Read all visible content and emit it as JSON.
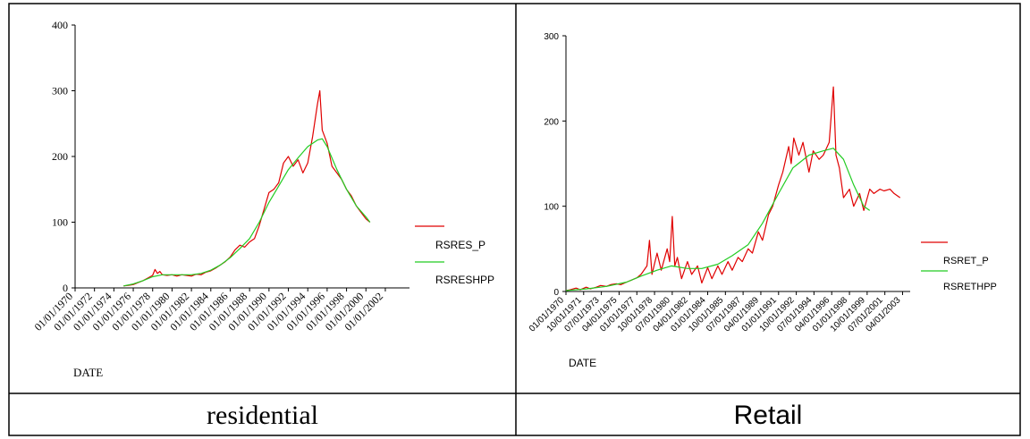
{
  "captions": {
    "left": "residential",
    "right": "Retail"
  },
  "chart_data": [
    {
      "type": "line",
      "xlabel": "DATE",
      "ylabel": "",
      "ylim": [
        0,
        400
      ],
      "y_ticks": [
        0,
        100,
        200,
        300,
        400
      ],
      "x_range": [
        "1970-01-01",
        "2004-06-30"
      ],
      "x_tick_labels": [
        "01/01/1970",
        "01/01/1972",
        "01/01/1974",
        "01/01/1976",
        "01/01/1978",
        "01/01/1980",
        "01/01/1982",
        "01/01/1984",
        "01/01/1986",
        "01/01/1988",
        "01/01/1990",
        "01/01/1992",
        "01/01/1994",
        "01/01/1996",
        "01/01/1998",
        "01/01/2000",
        "01/01/2002"
      ],
      "x_tick_dates": [
        "1970-01-01",
        "1972-01-01",
        "1974-01-01",
        "1976-01-01",
        "1978-01-01",
        "1980-01-01",
        "1982-01-01",
        "1984-01-01",
        "1986-01-01",
        "1988-01-01",
        "1990-01-01",
        "1992-01-01",
        "1994-01-01",
        "1996-01-01",
        "1998-01-01",
        "2000-01-01",
        "2002-01-01"
      ],
      "legend": [
        "RSRES_P",
        "RSRESHPP"
      ],
      "legend_position": "right",
      "grid": false,
      "series": [
        {
          "name": "RSRES_P",
          "color": "#e00000",
          "points": [
            [
              "1975-01-01",
              3
            ],
            [
              "1975-07-01",
              4
            ],
            [
              "1976-01-01",
              5
            ],
            [
              "1976-07-01",
              8
            ],
            [
              "1977-01-01",
              11
            ],
            [
              "1977-07-01",
              15
            ],
            [
              "1978-01-01",
              19
            ],
            [
              "1978-04-01",
              28
            ],
            [
              "1978-07-01",
              22
            ],
            [
              "1978-10-01",
              25
            ],
            [
              "1979-01-01",
              20
            ],
            [
              "1979-07-01",
              19
            ],
            [
              "1980-01-01",
              20
            ],
            [
              "1980-07-01",
              18
            ],
            [
              "1981-01-01",
              20
            ],
            [
              "1981-07-01",
              19
            ],
            [
              "1982-01-01",
              18
            ],
            [
              "1982-07-01",
              21
            ],
            [
              "1983-01-01",
              20
            ],
            [
              "1983-07-01",
              24
            ],
            [
              "1984-01-01",
              26
            ],
            [
              "1984-07-01",
              30
            ],
            [
              "1985-01-01",
              35
            ],
            [
              "1985-07-01",
              40
            ],
            [
              "1986-01-01",
              47
            ],
            [
              "1986-07-01",
              58
            ],
            [
              "1987-01-01",
              65
            ],
            [
              "1987-07-01",
              62
            ],
            [
              "1988-01-01",
              70
            ],
            [
              "1988-07-01",
              75
            ],
            [
              "1989-01-01",
              95
            ],
            [
              "1989-07-01",
              120
            ],
            [
              "1990-01-01",
              145
            ],
            [
              "1990-07-01",
              150
            ],
            [
              "1991-01-01",
              160
            ],
            [
              "1991-07-01",
              190
            ],
            [
              "1992-01-01",
              200
            ],
            [
              "1992-07-01",
              185
            ],
            [
              "1993-01-01",
              195
            ],
            [
              "1993-07-01",
              175
            ],
            [
              "1994-01-01",
              190
            ],
            [
              "1994-07-01",
              230
            ],
            [
              "1995-01-01",
              280
            ],
            [
              "1995-04-01",
              300
            ],
            [
              "1995-07-01",
              240
            ],
            [
              "1996-01-01",
              220
            ],
            [
              "1996-07-01",
              185
            ],
            [
              "1997-01-01",
              175
            ],
            [
              "1997-07-01",
              165
            ],
            [
              "1998-01-01",
              150
            ],
            [
              "1998-07-01",
              140
            ],
            [
              "1999-01-01",
              125
            ],
            [
              "1999-07-01",
              115
            ],
            [
              "2000-01-01",
              105
            ],
            [
              "2000-06-01",
              100
            ]
          ]
        },
        {
          "name": "RSRESHPP",
          "color": "#22cc22",
          "points": [
            [
              "1975-01-01",
              3
            ],
            [
              "1976-01-01",
              6
            ],
            [
              "1977-01-01",
              11
            ],
            [
              "1978-01-01",
              17
            ],
            [
              "1979-01-01",
              20
            ],
            [
              "1980-01-01",
              20
            ],
            [
              "1981-01-01",
              20
            ],
            [
              "1982-01-01",
              20
            ],
            [
              "1983-01-01",
              22
            ],
            [
              "1984-01-01",
              27
            ],
            [
              "1985-01-01",
              35
            ],
            [
              "1986-01-01",
              46
            ],
            [
              "1987-01-01",
              60
            ],
            [
              "1988-01-01",
              75
            ],
            [
              "1989-01-01",
              100
            ],
            [
              "1990-01-01",
              130
            ],
            [
              "1991-01-01",
              155
            ],
            [
              "1992-01-01",
              180
            ],
            [
              "1993-01-01",
              198
            ],
            [
              "1994-01-01",
              215
            ],
            [
              "1995-01-01",
              225
            ],
            [
              "1995-07-01",
              227
            ],
            [
              "1996-01-01",
              215
            ],
            [
              "1997-01-01",
              180
            ],
            [
              "1998-01-01",
              150
            ],
            [
              "1999-01-01",
              125
            ],
            [
              "2000-01-01",
              108
            ],
            [
              "2000-06-01",
              100
            ]
          ]
        }
      ]
    },
    {
      "type": "line",
      "xlabel": "DATE",
      "ylabel": "",
      "ylim": [
        0,
        300
      ],
      "y_ticks": [
        0,
        100,
        200,
        300
      ],
      "x_range": [
        "1970-01-01",
        "2004-01-01"
      ],
      "x_tick_labels": [
        "01/01/1970",
        "10/01/1971",
        "07/01/1973",
        "04/01/1975",
        "01/01/1977",
        "10/01/1978",
        "07/01/1980",
        "04/01/1982",
        "01/01/1984",
        "10/01/1985",
        "07/01/1987",
        "04/01/1989",
        "01/01/1991",
        "10/01/1992",
        "07/01/1994",
        "04/01/1996",
        "01/01/1998",
        "10/01/1999",
        "07/01/2001",
        "04/01/2003"
      ],
      "x_tick_dates": [
        "1970-01-01",
        "1971-10-01",
        "1973-07-01",
        "1975-04-01",
        "1977-01-01",
        "1978-10-01",
        "1980-07-01",
        "1982-04-01",
        "1984-01-01",
        "1985-10-01",
        "1987-07-01",
        "1989-04-01",
        "1991-01-01",
        "1992-10-01",
        "1994-07-01",
        "1996-04-01",
        "1998-01-01",
        "1999-10-01",
        "2001-07-01",
        "2003-04-01"
      ],
      "legend": [
        "RSRET_P",
        "RSRETHPP"
      ],
      "legend_position": "right",
      "grid": false,
      "series": [
        {
          "name": "RSRET_P",
          "color": "#e00000",
          "points": [
            [
              "1970-01-01",
              1
            ],
            [
              "1970-06-01",
              2
            ],
            [
              "1971-01-01",
              4
            ],
            [
              "1971-06-01",
              2
            ],
            [
              "1972-01-01",
              5
            ],
            [
              "1972-06-01",
              3
            ],
            [
              "1973-01-01",
              5
            ],
            [
              "1973-06-01",
              7
            ],
            [
              "1974-01-01",
              6
            ],
            [
              "1974-06-01",
              8
            ],
            [
              "1975-01-01",
              9
            ],
            [
              "1975-06-01",
              8
            ],
            [
              "1976-01-01",
              11
            ],
            [
              "1976-06-01",
              13
            ],
            [
              "1977-01-01",
              16
            ],
            [
              "1977-06-01",
              20
            ],
            [
              "1978-01-01",
              30
            ],
            [
              "1978-04-01",
              60
            ],
            [
              "1978-07-01",
              20
            ],
            [
              "1979-01-01",
              45
            ],
            [
              "1979-06-01",
              25
            ],
            [
              "1980-01-01",
              50
            ],
            [
              "1980-04-01",
              35
            ],
            [
              "1980-07-01",
              88
            ],
            [
              "1980-10-01",
              30
            ],
            [
              "1981-01-01",
              40
            ],
            [
              "1981-06-01",
              15
            ],
            [
              "1982-01-01",
              35
            ],
            [
              "1982-06-01",
              20
            ],
            [
              "1983-01-01",
              30
            ],
            [
              "1983-06-01",
              10
            ],
            [
              "1984-01-01",
              28
            ],
            [
              "1984-06-01",
              15
            ],
            [
              "1985-01-01",
              30
            ],
            [
              "1985-06-01",
              20
            ],
            [
              "1986-01-01",
              35
            ],
            [
              "1986-06-01",
              25
            ],
            [
              "1987-01-01",
              40
            ],
            [
              "1987-06-01",
              35
            ],
            [
              "1988-01-01",
              50
            ],
            [
              "1988-06-01",
              45
            ],
            [
              "1989-01-01",
              70
            ],
            [
              "1989-06-01",
              60
            ],
            [
              "1990-01-01",
              90
            ],
            [
              "1990-06-01",
              100
            ],
            [
              "1991-01-01",
              125
            ],
            [
              "1991-06-01",
              140
            ],
            [
              "1992-01-01",
              170
            ],
            [
              "1992-04-01",
              150
            ],
            [
              "1992-07-01",
              180
            ],
            [
              "1993-01-01",
              160
            ],
            [
              "1993-06-01",
              175
            ],
            [
              "1994-01-01",
              140
            ],
            [
              "1994-06-01",
              165
            ],
            [
              "1995-01-01",
              155
            ],
            [
              "1995-06-01",
              160
            ],
            [
              "1996-01-01",
              175
            ],
            [
              "1996-06-01",
              240
            ],
            [
              "1996-09-01",
              160
            ],
            [
              "1997-01-01",
              145
            ],
            [
              "1997-06-01",
              110
            ],
            [
              "1998-01-01",
              120
            ],
            [
              "1998-06-01",
              100
            ],
            [
              "1999-01-01",
              115
            ],
            [
              "1999-06-01",
              95
            ],
            [
              "2000-01-01",
              120
            ],
            [
              "2000-06-01",
              115
            ],
            [
              "2001-01-01",
              120
            ],
            [
              "2001-06-01",
              118
            ],
            [
              "2002-01-01",
              120
            ],
            [
              "2002-06-01",
              115
            ],
            [
              "2003-01-01",
              110
            ]
          ]
        },
        {
          "name": "RSRETHPP",
          "color": "#22cc22",
          "points": [
            [
              "1970-01-01",
              1
            ],
            [
              "1972-01-01",
              3
            ],
            [
              "1974-01-01",
              6
            ],
            [
              "1976-01-01",
              11
            ],
            [
              "1977-06-01",
              18
            ],
            [
              "1979-01-01",
              25
            ],
            [
              "1980-06-01",
              30
            ],
            [
              "1982-01-01",
              27
            ],
            [
              "1983-06-01",
              27
            ],
            [
              "1985-01-01",
              32
            ],
            [
              "1986-06-01",
              42
            ],
            [
              "1988-01-01",
              55
            ],
            [
              "1989-06-01",
              80
            ],
            [
              "1991-01-01",
              115
            ],
            [
              "1992-06-01",
              145
            ],
            [
              "1994-01-01",
              160
            ],
            [
              "1995-06-01",
              165
            ],
            [
              "1996-06-01",
              168
            ],
            [
              "1997-06-01",
              155
            ],
            [
              "1998-06-01",
              125
            ],
            [
              "1999-06-01",
              100
            ],
            [
              "2000-01-01",
              95
            ]
          ]
        }
      ]
    }
  ]
}
